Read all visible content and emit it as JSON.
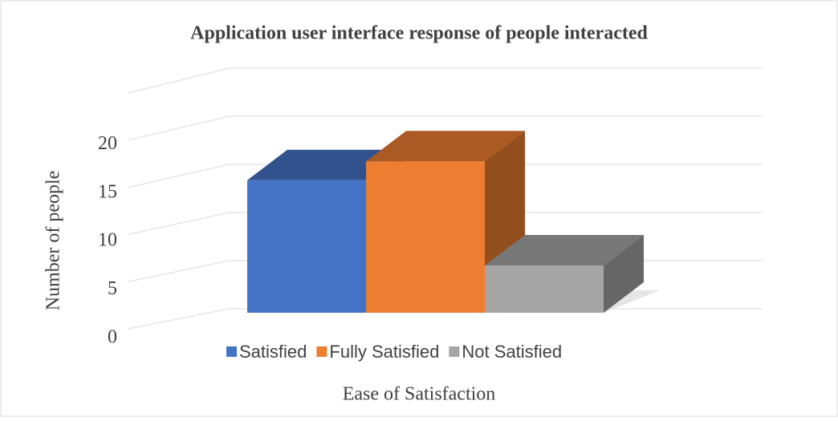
{
  "chart_data": {
    "type": "bar3d",
    "title": "Application user interface response of people interacted",
    "x_label": "Ease of Satisfaction",
    "y_label": "Number of people",
    "categories": [
      null
    ],
    "series": [
      {
        "name": "Satisfied",
        "color": "#4472c4",
        "values": [
          14
        ]
      },
      {
        "name": "Fully Satisfied",
        "color": "#ed7d31",
        "values": [
          16
        ]
      },
      {
        "name": "Not Satisfied",
        "color": "#a5a5a5",
        "values": [
          5
        ]
      }
    ],
    "ylim": [
      0,
      25
    ],
    "yticks": [
      0,
      5,
      10,
      15,
      20
    ],
    "grid": true,
    "legend": "bottom"
  }
}
